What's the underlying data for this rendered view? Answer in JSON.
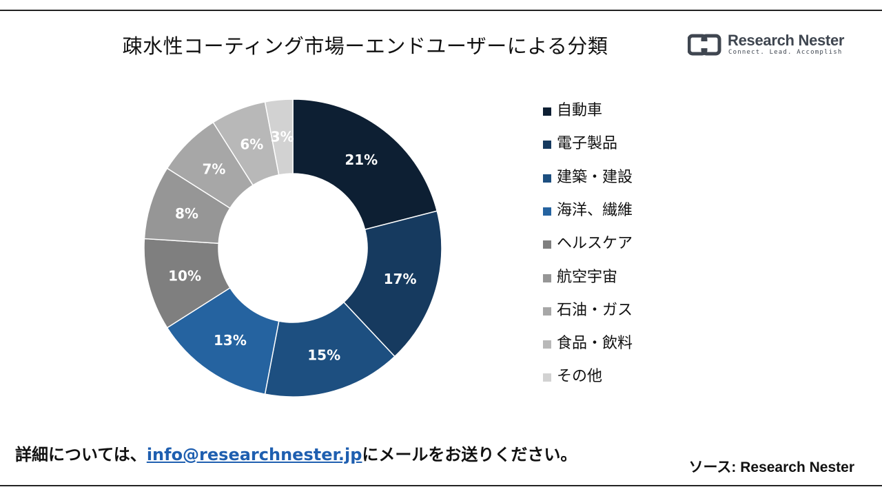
{
  "title": "疎水性コーティング市場ーエンドユーザーによる分類",
  "brand": {
    "name": "Research Nester",
    "tagline": "Connect. Lead. Accomplish"
  },
  "chart_data": {
    "type": "pie",
    "donut": true,
    "title": "疎水性コーティング市場ーエンドユーザーによる分類",
    "categories": [
      "自動車",
      "電子製品",
      "建築・建設",
      "海洋、繊維",
      "ヘルスケア",
      "航空宇宙",
      "石油・ガス",
      "食品・飲料",
      "その他"
    ],
    "values": [
      21,
      17,
      15,
      13,
      10,
      8,
      7,
      6,
      3
    ],
    "labels": [
      "21%",
      "17%",
      "15%",
      "13%",
      "10%",
      "8%",
      "7%",
      "6%",
      "3%"
    ],
    "colors": [
      "#0d1f33",
      "#163a5f",
      "#1d4f80",
      "#2563a0",
      "#7f7f7f",
      "#969696",
      "#a7a7a7",
      "#b8b8b8",
      "#d2d2d2"
    ],
    "label_colors": [
      "#ffffff",
      "#ffffff",
      "#ffffff",
      "#ffffff",
      "#ffffff",
      "#ffffff",
      "#ffffff",
      "#ffffff",
      "#ffffff"
    ],
    "legend_position": "right"
  },
  "footer": {
    "prefix": "詳細については、",
    "email": "info@researchnester.jp",
    "suffix": "にメールをお送りください。"
  },
  "source": "ソース: Research Nester"
}
